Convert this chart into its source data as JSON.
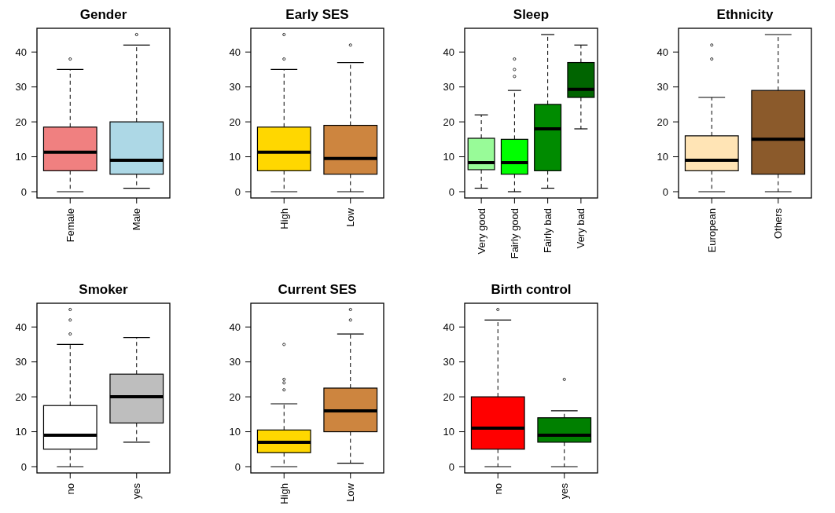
{
  "chart_data": [
    {
      "type": "box",
      "title": "Gender",
      "categories": [
        "Female",
        "Male"
      ],
      "colors": [
        "#f08080",
        "#add8e6"
      ],
      "ylim": [
        -1.8,
        46.8
      ],
      "yticks": [
        0,
        10,
        20,
        30,
        40
      ],
      "boxes": [
        {
          "low": 0,
          "q1": 6,
          "median": 11.3,
          "q3": 18.5,
          "high": 35,
          "outliers": [
            38
          ]
        },
        {
          "low": 1,
          "q1": 5,
          "median": 9,
          "q3": 20,
          "high": 42,
          "outliers": [
            45
          ]
        }
      ]
    },
    {
      "type": "box",
      "title": "Early SES",
      "categories": [
        "High",
        "Low"
      ],
      "colors": [
        "#ffd700",
        "#cd853f"
      ],
      "ylim": [
        -1.8,
        46.8
      ],
      "yticks": [
        0,
        10,
        20,
        30,
        40
      ],
      "boxes": [
        {
          "low": 0,
          "q1": 6,
          "median": 11.3,
          "q3": 18.5,
          "high": 35,
          "outliers": [
            38,
            45
          ]
        },
        {
          "low": 0,
          "q1": 5,
          "median": 9.5,
          "q3": 19,
          "high": 37,
          "outliers": [
            42
          ]
        }
      ]
    },
    {
      "type": "box",
      "title": "Sleep",
      "categories": [
        "Very good",
        "Fairly good",
        "Fairly bad",
        "Very bad"
      ],
      "colors": [
        "#98fb98",
        "#00ff00",
        "#008b00",
        "#006400"
      ],
      "ylim": [
        -1.8,
        46.8
      ],
      "yticks": [
        0,
        10,
        20,
        30,
        40
      ],
      "boxes": [
        {
          "low": 1,
          "q1": 6.3,
          "median": 8.3,
          "q3": 15.3,
          "high": 22
        },
        {
          "low": 0,
          "q1": 5,
          "median": 8.3,
          "q3": 15,
          "high": 29,
          "outliers": [
            33,
            35,
            38
          ]
        },
        {
          "low": 1,
          "q1": 6,
          "median": 18,
          "q3": 25,
          "high": 45
        },
        {
          "low": 18,
          "q1": 27,
          "median": 29.3,
          "q3": 37,
          "high": 42
        }
      ]
    },
    {
      "type": "box",
      "title": "Ethnicity",
      "categories": [
        "European",
        "Others"
      ],
      "colors": [
        "#ffe4b5",
        "#8b5a2b"
      ],
      "ylim": [
        -1.8,
        46.8
      ],
      "yticks": [
        0,
        10,
        20,
        30,
        40
      ],
      "boxes": [
        {
          "low": 0,
          "q1": 6,
          "median": 9,
          "q3": 16,
          "high": 27,
          "outliers": [
            38,
            42
          ]
        },
        {
          "low": 0,
          "q1": 5,
          "median": 15,
          "q3": 29,
          "high": 45
        }
      ]
    },
    {
      "type": "box",
      "title": "Smoker",
      "categories": [
        "no",
        "yes"
      ],
      "colors": [
        "#ffffff",
        "#bebebe"
      ],
      "ylim": [
        -1.8,
        46.8
      ],
      "yticks": [
        0,
        10,
        20,
        30,
        40
      ],
      "boxes": [
        {
          "low": 0,
          "q1": 5,
          "median": 9,
          "q3": 17.5,
          "high": 35,
          "outliers": [
            38,
            42,
            45
          ]
        },
        {
          "low": 7,
          "q1": 12.5,
          "median": 20,
          "q3": 26.5,
          "high": 37
        }
      ]
    },
    {
      "type": "box",
      "title": "Current SES",
      "categories": [
        "High",
        "Low"
      ],
      "colors": [
        "#ffd700",
        "#cd853f"
      ],
      "ylim": [
        -1.8,
        46.8
      ],
      "yticks": [
        0,
        10,
        20,
        30,
        40
      ],
      "boxes": [
        {
          "low": 0,
          "q1": 4,
          "median": 7,
          "q3": 10.5,
          "high": 18,
          "outliers": [
            22,
            24,
            25,
            35
          ]
        },
        {
          "low": 1,
          "q1": 10,
          "median": 16,
          "q3": 22.5,
          "high": 38,
          "outliers": [
            42,
            45
          ]
        }
      ]
    },
    {
      "type": "box",
      "title": "Birth control",
      "categories": [
        "no",
        "yes"
      ],
      "colors": [
        "#ff0000",
        "#008000"
      ],
      "ylim": [
        -1.8,
        46.8
      ],
      "yticks": [
        0,
        10,
        20,
        30,
        40
      ],
      "boxes": [
        {
          "low": 0,
          "q1": 5,
          "median": 11,
          "q3": 20,
          "high": 42,
          "outliers": [
            45
          ]
        },
        {
          "low": 0,
          "q1": 7,
          "median": 9,
          "q3": 14,
          "high": 16,
          "outliers": [
            25
          ]
        }
      ]
    }
  ]
}
